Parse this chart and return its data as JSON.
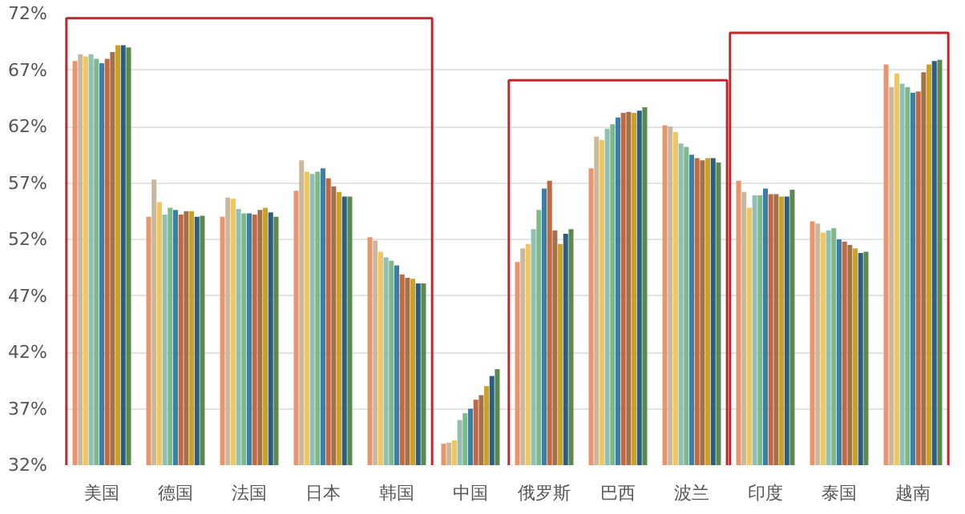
{
  "chart_data": {
    "type": "bar",
    "categories": [
      "美国",
      "德国",
      "法国",
      "日本",
      "韩国",
      "中国",
      "俄罗斯",
      "巴西",
      "波兰",
      "印度",
      "泰国",
      "越南"
    ],
    "series": [
      {
        "color": "#e8956b",
        "values": [
          67.8,
          54.0,
          54.0,
          56.3,
          52.2,
          33.9,
          50.0,
          58.3,
          62.1,
          57.2,
          53.6,
          67.5
        ]
      },
      {
        "color": "#c9b8a0",
        "values": [
          68.4,
          57.3,
          55.7,
          59.0,
          51.9,
          34.0,
          51.2,
          61.1,
          62.0,
          56.2,
          53.4,
          65.5
        ]
      },
      {
        "color": "#f0c75e",
        "values": [
          68.2,
          55.3,
          55.6,
          58.0,
          50.9,
          34.2,
          51.6,
          60.8,
          61.5,
          54.8,
          52.6,
          66.7
        ]
      },
      {
        "color": "#8fc1b3",
        "values": [
          68.4,
          54.2,
          54.7,
          57.8,
          50.4,
          36.0,
          52.9,
          61.8,
          60.5,
          55.9,
          52.8,
          65.8
        ]
      },
      {
        "color": "#7fb88a",
        "values": [
          68.0,
          54.8,
          54.3,
          58.0,
          50.1,
          36.6,
          54.6,
          62.2,
          60.2,
          55.9,
          53.0,
          65.5
        ]
      },
      {
        "color": "#3d7ea6",
        "values": [
          67.6,
          54.6,
          54.3,
          58.3,
          49.7,
          37.0,
          56.5,
          62.8,
          59.5,
          56.5,
          52.0,
          65.0
        ]
      },
      {
        "color": "#c0683f",
        "values": [
          68.0,
          54.2,
          54.2,
          57.4,
          48.9,
          37.8,
          57.2,
          63.2,
          59.2,
          56.0,
          51.8,
          65.1
        ]
      },
      {
        "color": "#a0714f",
        "values": [
          68.6,
          54.5,
          54.6,
          56.7,
          48.6,
          38.2,
          52.8,
          63.3,
          59.0,
          56.0,
          51.5,
          66.8
        ]
      },
      {
        "color": "#c9a227",
        "values": [
          69.2,
          54.5,
          54.8,
          56.2,
          48.5,
          39.0,
          51.6,
          63.2,
          59.2,
          55.8,
          51.2,
          67.5
        ]
      },
      {
        "color": "#2e5e7e",
        "values": [
          69.2,
          54.0,
          54.4,
          55.8,
          48.1,
          39.9,
          52.5,
          63.4,
          59.2,
          55.8,
          50.8,
          67.8
        ]
      },
      {
        "color": "#5a8a4f",
        "values": [
          69.0,
          54.1,
          54.0,
          55.8,
          48.1,
          40.5,
          52.9,
          63.7,
          58.8,
          56.4,
          50.9,
          67.9
        ]
      }
    ],
    "ylim": [
      32,
      72
    ],
    "yticks": [
      {
        "value": 32,
        "label": "32%"
      },
      {
        "value": 37,
        "label": "37%"
      },
      {
        "value": 42,
        "label": "42%"
      },
      {
        "value": 47,
        "label": "47%"
      },
      {
        "value": 52,
        "label": "52%"
      },
      {
        "value": 57,
        "label": "57%"
      },
      {
        "value": 62,
        "label": "62%"
      },
      {
        "value": 67,
        "label": "67%"
      },
      {
        "value": 72,
        "label": "72%"
      }
    ],
    "grid": "y"
  }
}
